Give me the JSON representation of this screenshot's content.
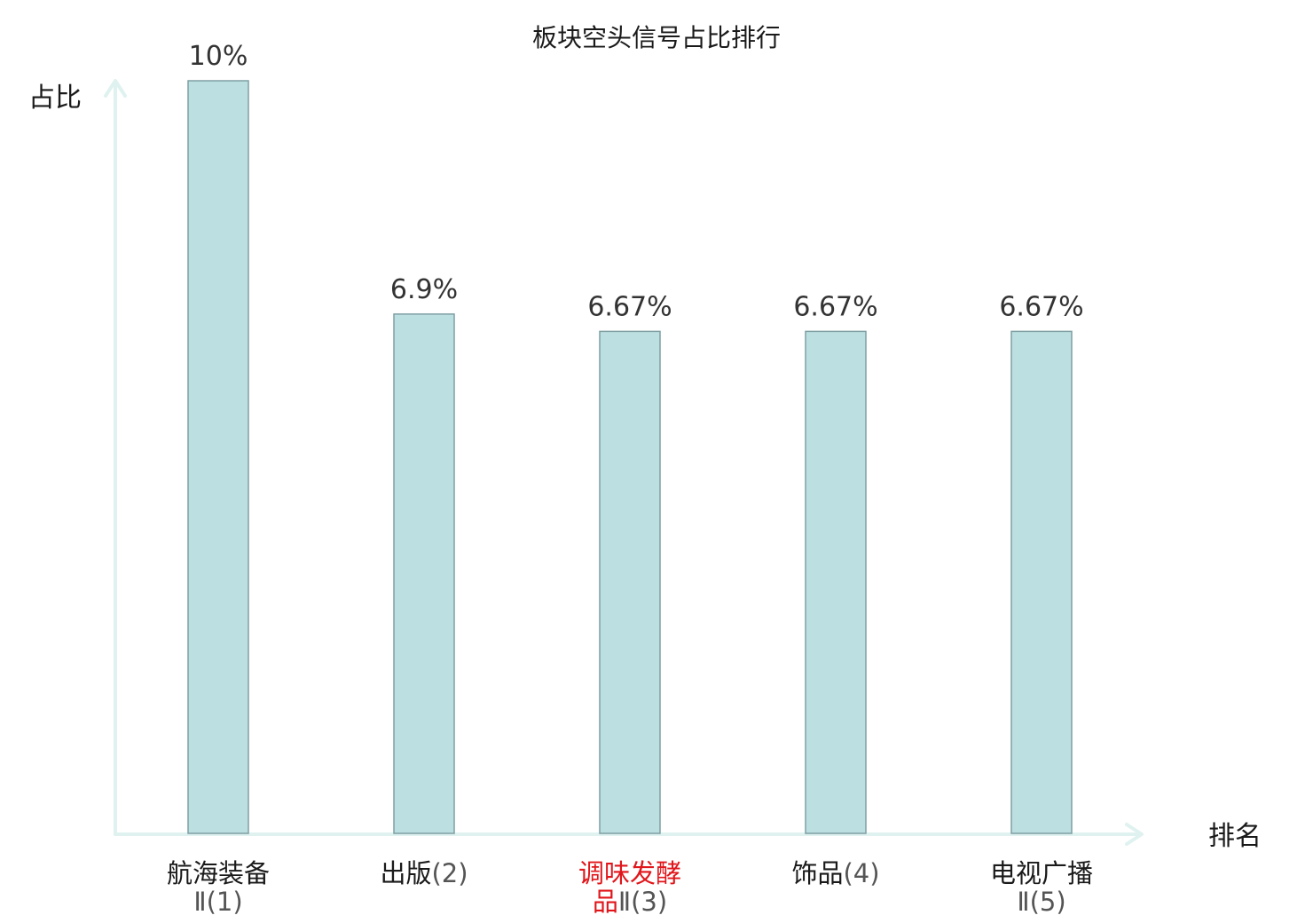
{
  "chart_data": {
    "type": "bar",
    "title": "板块空头信号占比排行",
    "xlabel": "排名",
    "ylabel": "占比",
    "ylim": [
      0,
      10
    ],
    "grid": false,
    "categories": [
      {
        "lines": [
          {
            "main": "航海装备",
            "suffix": ""
          },
          {
            "main": "",
            "suffix": "Ⅱ(1)"
          }
        ],
        "highlight": false
      },
      {
        "lines": [
          {
            "main": "出版",
            "suffix": "(2)"
          }
        ],
        "highlight": false
      },
      {
        "lines": [
          {
            "main": "调味发酵",
            "suffix": ""
          },
          {
            "main": "品",
            "suffix": "Ⅱ(3)"
          }
        ],
        "highlight": true
      },
      {
        "lines": [
          {
            "main": "饰品",
            "suffix": "(4)"
          }
        ],
        "highlight": false
      },
      {
        "lines": [
          {
            "main": "电视广播",
            "suffix": ""
          },
          {
            "main": "",
            "suffix": "Ⅱ(5)"
          }
        ],
        "highlight": false
      }
    ],
    "values": [
      10,
      6.9,
      6.67,
      6.67,
      6.67
    ],
    "value_labels": [
      "10%",
      "6.9%",
      "6.67%",
      "6.67%",
      "6.67%"
    ]
  },
  "colors": {
    "bar_fill": "#bce0e1",
    "bar_stroke": "#7f9fa3",
    "axis": "#dff2ef",
    "highlight_text": "#e0161b",
    "text": "#1a1a1a"
  }
}
